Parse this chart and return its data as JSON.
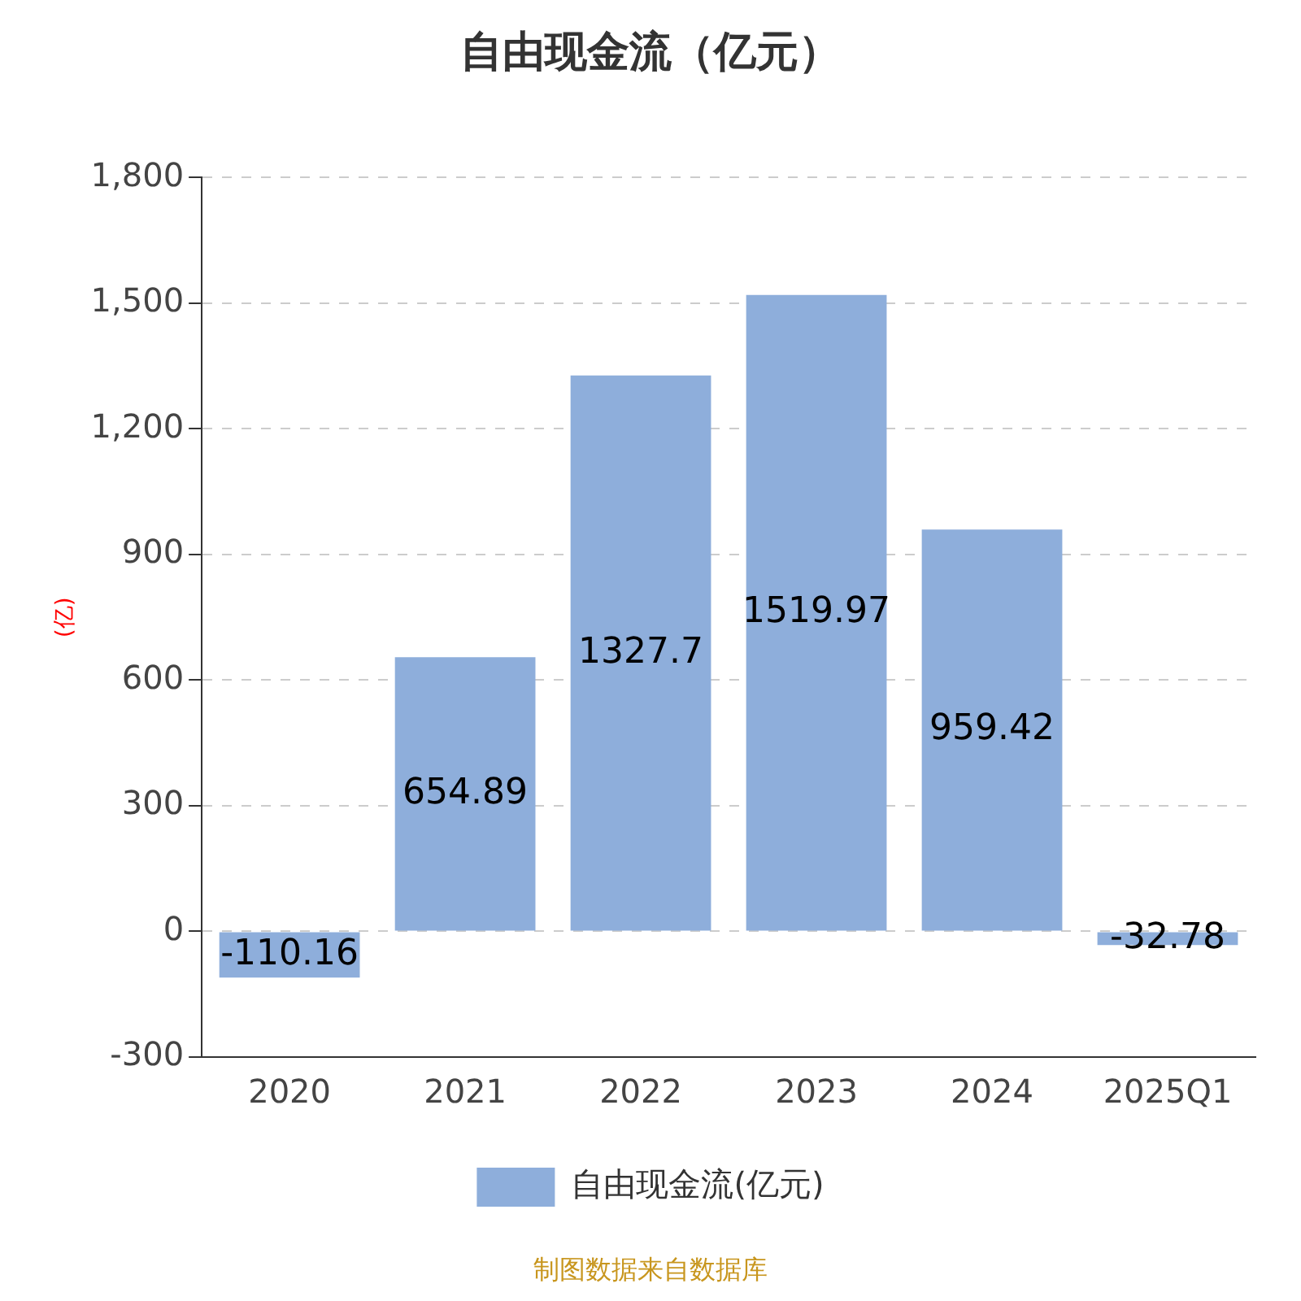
{
  "chart_data": {
    "type": "bar",
    "title": "自由现金流（亿元）",
    "ylabel": "(亿)",
    "categories": [
      "2020",
      "2021",
      "2022",
      "2023",
      "2024",
      "2025Q1"
    ],
    "series": [
      {
        "name": "自由现金流(亿元)",
        "color": "#8eaedb",
        "values": [
          -110.16,
          654.89,
          1327.7,
          1519.97,
          959.42,
          -32.78
        ]
      }
    ],
    "ylim": [
      -300,
      1800
    ],
    "yticks": [
      {
        "value": -300,
        "label": "-300"
      },
      0,
      300,
      600,
      900,
      {
        "value": 1200,
        "label": "1,200"
      },
      {
        "value": 1500,
        "label": "1,500"
      },
      {
        "value": 1800,
        "label": "1,800"
      }
    ],
    "grid": "y",
    "legend": "bottom",
    "data_labels": true,
    "annotations": [
      "制图数据来自数据库"
    ]
  }
}
